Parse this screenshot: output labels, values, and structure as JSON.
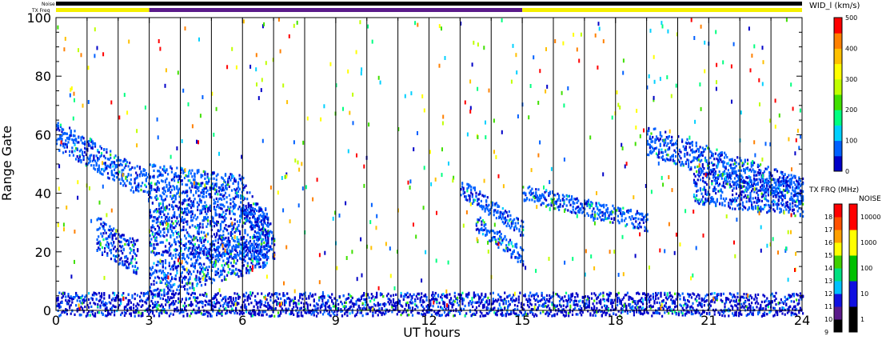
{
  "chart_data": {
    "type": "heatmap",
    "xlabel": "UT hours",
    "ylabel": "Range Gate",
    "xlim": [
      0,
      24
    ],
    "ylim": [
      0,
      100
    ],
    "x_ticks": [
      "0",
      "3",
      "6",
      "9",
      "12",
      "15",
      "18",
      "21",
      "24"
    ],
    "y_ticks": [
      "0",
      "20",
      "40",
      "60",
      "80",
      "100"
    ],
    "scan_boundaries_ut": [
      1,
      2,
      3,
      4,
      5,
      6,
      7,
      8,
      9,
      10,
      11,
      12,
      13,
      14,
      15,
      16,
      17,
      18,
      19,
      20,
      21,
      22,
      23
    ],
    "status_bars": {
      "noise_label": "Noise",
      "txfreq_label": "TX Freq",
      "noise_color": "#000000",
      "txfreq_segments": [
        {
          "start": 0,
          "end": 3,
          "color": "#f5f000"
        },
        {
          "start": 3,
          "end": 15,
          "color": "#5a1a8a"
        },
        {
          "start": 15,
          "end": 24,
          "color": "#f5f000"
        }
      ]
    },
    "echo_bands": [
      {
        "ut_start": 0.0,
        "ut_end": 3.0,
        "gate_start": 60,
        "gate_end": 42,
        "width": 5,
        "value": 60
      },
      {
        "ut_start": 3.0,
        "ut_end": 6.0,
        "gate_start": 44,
        "gate_end": 40,
        "width": 6,
        "value": 60
      },
      {
        "ut_start": 1.3,
        "ut_end": 2.6,
        "gate_start": 26,
        "gate_end": 18,
        "width": 6,
        "value": 50
      },
      {
        "ut_start": 3.0,
        "ut_end": 6.8,
        "gate_start": 28,
        "gate_end": 26,
        "width": 9,
        "value": 55
      },
      {
        "ut_start": 3.0,
        "ut_end": 6.8,
        "gate_start": 10,
        "gate_end": 20,
        "width": 6,
        "value": 55
      },
      {
        "ut_start": 6.0,
        "ut_end": 7.0,
        "gate_start": 38,
        "gate_end": 22,
        "width": 6,
        "value": 50
      },
      {
        "ut_start": 13.0,
        "ut_end": 15.0,
        "gate_start": 42,
        "gate_end": 28,
        "width": 3,
        "value": 60
      },
      {
        "ut_start": 13.5,
        "ut_end": 15.0,
        "gate_start": 30,
        "gate_end": 18,
        "width": 3,
        "value": 60
      },
      {
        "ut_start": 15.0,
        "ut_end": 19.0,
        "gate_start": 40,
        "gate_end": 30,
        "width": 3,
        "value": 60
      },
      {
        "ut_start": 19.0,
        "ut_end": 24.0,
        "gate_start": 58,
        "gate_end": 40,
        "width": 5,
        "value": 60
      },
      {
        "ut_start": 20.5,
        "ut_end": 24.0,
        "gate_start": 42,
        "gate_end": 38,
        "width": 6,
        "value": 55
      },
      {
        "ut_start": 0.0,
        "ut_end": 24.0,
        "gate_start": 2,
        "gate_end": 2,
        "width": 4,
        "value": 40
      }
    ],
    "colorbars": [
      {
        "title": "WID_l (km/s)",
        "range": [
          0,
          500
        ],
        "ticks": [
          "0",
          "100",
          "200",
          "300",
          "400",
          "500"
        ],
        "colors": [
          "#0000c8",
          "#0060ff",
          "#00d0ff",
          "#00ff80",
          "#40e000",
          "#c0ff00",
          "#ffff00",
          "#ffc000",
          "#ff8000",
          "#ff0000"
        ]
      },
      {
        "title": "TX FRQ (MHz)",
        "ticks": [
          "9",
          "10",
          "11",
          "12",
          "13",
          "14",
          "15",
          "16",
          "17",
          "18"
        ],
        "colors": [
          "#000000",
          "#5a1a8a",
          "#1010e0",
          "#00c0ff",
          "#00e080",
          "#40d000",
          "#ffff00",
          "#ffa000",
          "#ff5000",
          "#ff0000"
        ]
      },
      {
        "title": "NOISE",
        "ticks": [
          "1",
          "10",
          "100",
          "1000",
          "10000"
        ],
        "colors": [
          "#000000",
          "#1010e0",
          "#00c000",
          "#ffff00",
          "#ff0000"
        ]
      }
    ]
  }
}
